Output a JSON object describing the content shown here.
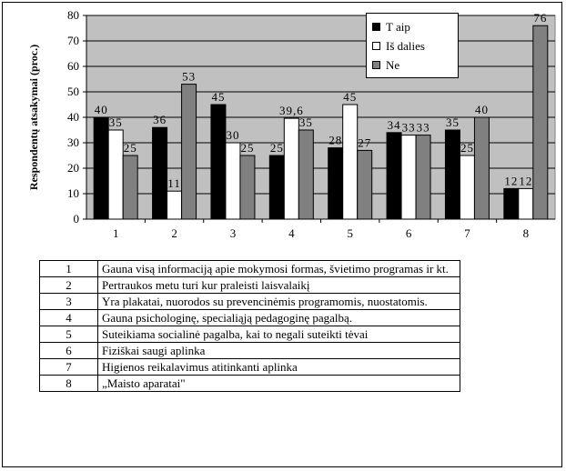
{
  "chart_data": {
    "type": "bar",
    "ylabel": "Respondentų atsakymai (proc.)",
    "xlabel": "",
    "categories": [
      "1",
      "2",
      "3",
      "4",
      "5",
      "6",
      "7",
      "8"
    ],
    "yticks": [
      "0",
      "10",
      "20",
      "30",
      "40",
      "50",
      "60",
      "70",
      "80"
    ],
    "ylim": [
      0,
      80
    ],
    "grid": true,
    "legend_position": "top-right",
    "series": [
      {
        "name": "T aip",
        "color": "#000000",
        "values": [
          40,
          36,
          45,
          25,
          28,
          34,
          35,
          12
        ],
        "labels": [
          "40",
          "36",
          "45",
          "25",
          "28",
          "34",
          "35",
          "12"
        ]
      },
      {
        "name": "Iš dalies",
        "color": "#ffffff",
        "values": [
          35,
          11,
          30,
          39.6,
          45,
          33,
          25,
          12
        ],
        "labels": [
          "35",
          "11",
          "30",
          "39,6",
          "45",
          "33",
          "25",
          "12"
        ]
      },
      {
        "name": "Ne",
        "color": "#808080",
        "values": [
          25,
          53,
          25,
          35,
          27,
          33,
          40,
          76
        ],
        "labels": [
          "25",
          "53",
          "25",
          "35",
          "27",
          "33",
          "40",
          "76"
        ]
      }
    ],
    "plot_background": "#c0c0c0"
  },
  "table": {
    "rows": [
      {
        "num": "1",
        "text": "Gauna visą informaciją apie mokymosi formas, švietimo programas ir kt."
      },
      {
        "num": "2",
        "text": "Pertraukos metu turi kur praleisti laisvalaikį"
      },
      {
        "num": "3",
        "text": "Yra plakatai, nuorodos su prevencinėmis programomis, nuostatomis."
      },
      {
        "num": "4",
        "text": "Gauna psichologinę, specialiąją pedagoginę pagalbą."
      },
      {
        "num": "5",
        "text": "Suteikiama socialinė pagalba, kai to negali suteikti tėvai"
      },
      {
        "num": "6",
        "text": "Fiziškai saugi aplinka"
      },
      {
        "num": "7",
        "text": "Higienos reikalavimus atitinkanti aplinka"
      },
      {
        "num": "8",
        "text": "„Maisto aparatai\""
      }
    ]
  }
}
